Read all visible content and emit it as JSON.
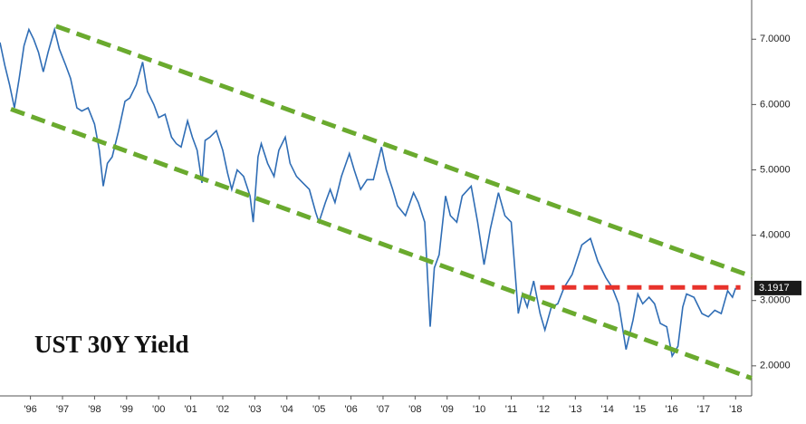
{
  "chart_data": {
    "type": "line",
    "title": "UST 30Y Yield",
    "x": [
      1995.55,
      1995.7,
      1995.85,
      1996.0,
      1996.15,
      1996.3,
      1996.45,
      1996.6,
      1996.75,
      1996.9,
      1997.05,
      1997.25,
      1997.4,
      1997.6,
      1997.75,
      1997.95,
      1998.1,
      1998.3,
      1998.5,
      1998.65,
      1998.77,
      1998.9,
      1999.05,
      1999.25,
      1999.45,
      1999.6,
      1999.8,
      2000.0,
      2000.15,
      2000.35,
      2000.5,
      2000.7,
      2000.9,
      2001.05,
      2001.2,
      2001.4,
      2001.55,
      2001.7,
      2001.85,
      2001.95,
      2002.1,
      2002.3,
      2002.5,
      2002.65,
      2002.78,
      2002.95,
      2003.15,
      2003.35,
      2003.45,
      2003.6,
      2003.7,
      2003.9,
      2004.1,
      2004.25,
      2004.45,
      2004.6,
      2004.8,
      2005.0,
      2005.2,
      2005.4,
      2005.5,
      2005.7,
      2005.85,
      2006.0,
      2006.2,
      2006.45,
      2006.6,
      2006.8,
      2007.0,
      2007.2,
      2007.45,
      2007.6,
      2007.8,
      2007.95,
      2008.2,
      2008.45,
      2008.6,
      2008.8,
      2008.97,
      2009.1,
      2009.25,
      2009.45,
      2009.6,
      2009.8,
      2009.97,
      2010.25,
      2010.45,
      2010.65,
      2010.85,
      2011.1,
      2011.3,
      2011.5,
      2011.72,
      2011.85,
      2012.0,
      2012.2,
      2012.4,
      2012.55,
      2012.75,
      2012.95,
      2013.15,
      2013.4,
      2013.6,
      2013.7,
      2013.97,
      2014.2,
      2014.45,
      2014.65,
      2014.85,
      2015.08,
      2015.3,
      2015.45,
      2015.6,
      2015.8,
      2015.97,
      2016.15,
      2016.35,
      2016.52,
      2016.7,
      2016.85,
      2016.97,
      2017.2,
      2017.45,
      2017.65,
      2017.85,
      2018.05,
      2018.25,
      2018.4,
      2018.5
    ],
    "series": [
      {
        "color": "#2f6db5",
        "values": [
          6.95,
          6.6,
          6.3,
          5.95,
          6.4,
          6.9,
          7.15,
          7.0,
          6.8,
          6.5,
          6.8,
          7.15,
          6.85,
          6.6,
          6.4,
          5.95,
          5.9,
          5.95,
          5.7,
          5.3,
          4.75,
          5.1,
          5.2,
          5.6,
          6.05,
          6.1,
          6.3,
          6.65,
          6.2,
          6.0,
          5.8,
          5.85,
          5.5,
          5.4,
          5.35,
          5.75,
          5.5,
          5.3,
          4.8,
          5.45,
          5.5,
          5.6,
          5.3,
          4.95,
          4.7,
          5.0,
          4.9,
          4.6,
          4.2,
          5.2,
          5.4,
          5.1,
          4.9,
          5.3,
          5.5,
          5.1,
          4.9,
          4.8,
          4.7,
          4.35,
          4.2,
          4.5,
          4.7,
          4.5,
          4.9,
          5.25,
          5.0,
          4.7,
          4.85,
          4.85,
          5.35,
          5.0,
          4.7,
          4.45,
          4.3,
          4.65,
          4.5,
          4.2,
          2.6,
          3.5,
          3.7,
          4.6,
          4.3,
          4.2,
          4.6,
          4.75,
          4.2,
          3.55,
          4.1,
          4.65,
          4.3,
          4.2,
          2.8,
          3.1,
          2.9,
          3.3,
          2.8,
          2.55,
          2.9,
          2.95,
          3.2,
          3.4,
          3.7,
          3.85,
          3.95,
          3.6,
          3.35,
          3.2,
          2.95,
          2.25,
          2.7,
          3.1,
          2.95,
          3.05,
          2.95,
          2.65,
          2.6,
          2.15,
          2.3,
          2.9,
          3.1,
          3.05,
          2.8,
          2.75,
          2.85,
          2.8,
          3.15,
          3.05,
          3.1917
        ]
      }
    ],
    "last_value_label": "3.1917",
    "trend_lines": [
      {
        "color": "#6aaa2e",
        "x": [
          1997.3,
          2019.0
        ],
        "y": [
          7.2,
          3.37
        ]
      },
      {
        "color": "#6aaa2e",
        "x": [
          1995.89,
          2019.0
        ],
        "y": [
          5.93,
          1.81
        ]
      },
      {
        "color": "#e8322b",
        "x": [
          2012.4,
          2018.65
        ],
        "y": [
          3.2,
          3.2
        ]
      }
    ],
    "xlim": [
      1995.55,
      2019.0
    ],
    "ylim": [
      1.54,
      7.6
    ],
    "xticks": [
      {
        "value": 1996.5,
        "label": "'96"
      },
      {
        "value": 1997.5,
        "label": "'97"
      },
      {
        "value": 1998.5,
        "label": "'98"
      },
      {
        "value": 1999.5,
        "label": "'99"
      },
      {
        "value": 2000.5,
        "label": "'00"
      },
      {
        "value": 2001.5,
        "label": "'01"
      },
      {
        "value": 2002.5,
        "label": "'02"
      },
      {
        "value": 2003.5,
        "label": "'03"
      },
      {
        "value": 2004.5,
        "label": "'04"
      },
      {
        "value": 2005.5,
        "label": "'05"
      },
      {
        "value": 2006.5,
        "label": "'06"
      },
      {
        "value": 2007.5,
        "label": "'07"
      },
      {
        "value": 2008.5,
        "label": "'08"
      },
      {
        "value": 2009.5,
        "label": "'09"
      },
      {
        "value": 2010.5,
        "label": "'10"
      },
      {
        "value": 2011.5,
        "label": "'11"
      },
      {
        "value": 2012.5,
        "label": "'12"
      },
      {
        "value": 2013.5,
        "label": "'13"
      },
      {
        "value": 2014.5,
        "label": "'14"
      },
      {
        "value": 2015.5,
        "label": "'15"
      },
      {
        "value": 2016.5,
        "label": "'16"
      },
      {
        "value": 2017.5,
        "label": "'17"
      },
      {
        "value": 2018.5,
        "label": "'18"
      }
    ],
    "yticks": [
      {
        "value": 2,
        "label": "2.0000"
      },
      {
        "value": 3,
        "label": "3.0000"
      },
      {
        "value": 4,
        "label": "4.0000"
      },
      {
        "value": 5,
        "label": "5.0000"
      },
      {
        "value": 6,
        "label": "6.0000"
      },
      {
        "value": 7,
        "label": "7.0000"
      }
    ]
  }
}
